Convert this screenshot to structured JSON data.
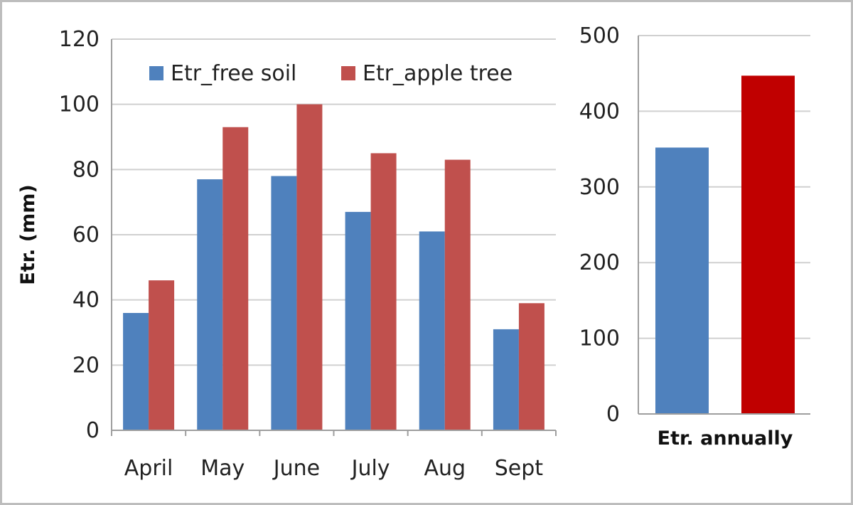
{
  "chart_data": [
    {
      "type": "bar",
      "ylabel": "Etr. (mm)",
      "ylim": [
        0,
        120
      ],
      "yticks": [
        0,
        20,
        40,
        60,
        80,
        100,
        120
      ],
      "categories": [
        "April",
        "May",
        "June",
        "July",
        "Aug",
        "Sept"
      ],
      "series": [
        {
          "name": "Etr_free soil",
          "color": "#4f81bd",
          "values": [
            36,
            77,
            78,
            67,
            61,
            31
          ]
        },
        {
          "name": "Etr_apple tree",
          "color": "#c0504d",
          "values": [
            46,
            93,
            100,
            85,
            83,
            39
          ]
        }
      ],
      "legend": "top",
      "grid": true
    },
    {
      "type": "bar",
      "xlabel": "Etr. annually",
      "ylim": [
        0,
        500
      ],
      "yticks": [
        0,
        100,
        200,
        300,
        400,
        500
      ],
      "values": [
        352,
        447
      ],
      "colors": [
        "#4f81bd",
        "#c00000"
      ],
      "grid": true
    }
  ]
}
